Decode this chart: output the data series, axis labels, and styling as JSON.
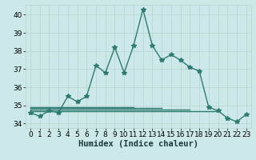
{
  "xlabel": "Humidex (Indice chaleur)",
  "x": [
    0,
    1,
    2,
    3,
    4,
    5,
    6,
    7,
    8,
    9,
    10,
    11,
    12,
    13,
    14,
    15,
    16,
    17,
    18,
    19,
    20,
    21,
    22,
    23
  ],
  "y_main": [
    34.6,
    34.4,
    34.7,
    34.6,
    35.5,
    35.2,
    35.5,
    37.2,
    36.8,
    38.2,
    36.8,
    38.3,
    40.3,
    38.3,
    37.5,
    37.8,
    37.5,
    37.1,
    36.9,
    34.9,
    34.7,
    34.3,
    34.1,
    34.5
  ],
  "flat_lines": [
    {
      "x0": 0,
      "x1": 20,
      "y": 34.68
    },
    {
      "x0": 0,
      "x1": 17,
      "y": 34.76
    },
    {
      "x0": 0,
      "x1": 14,
      "y": 34.84
    },
    {
      "x0": 0,
      "x1": 11,
      "y": 34.92
    }
  ],
  "line_color": "#2d7b70",
  "bg_color": "#cce8e8",
  "grid_color_major": "#b8d4d0",
  "grid_color_minor": "#d0e8e4",
  "ylim": [
    33.75,
    40.55
  ],
  "xlim": [
    -0.5,
    23.5
  ],
  "yticks": [
    34,
    35,
    36,
    37,
    38,
    39,
    40
  ],
  "xticks": [
    0,
    1,
    2,
    3,
    4,
    5,
    6,
    7,
    8,
    9,
    10,
    11,
    12,
    13,
    14,
    15,
    16,
    17,
    18,
    19,
    20,
    21,
    22,
    23
  ],
  "marker": "*",
  "marker_size": 4,
  "linewidth": 1.0,
  "tick_fontsize": 6.5,
  "xlabel_fontsize": 7.5
}
